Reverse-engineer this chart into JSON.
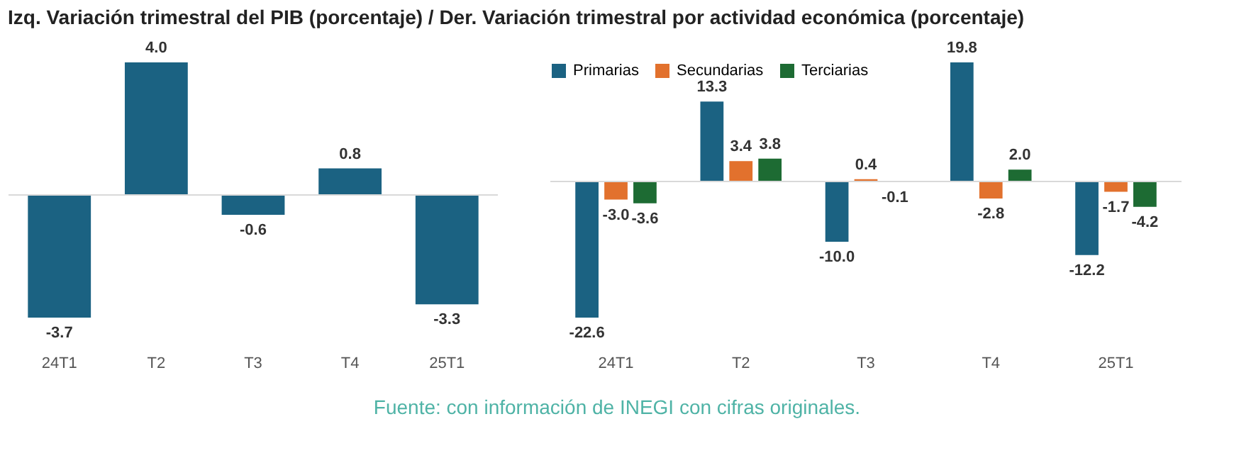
{
  "chart_data": [
    {
      "type": "bar",
      "title": "Izq. Variación trimestral del PIB (porcentaje) / Der. Variación trimestral por actividad económica (porcentaje)",
      "categories": [
        "24T1",
        "T2",
        "T3",
        "T4",
        "25T1"
      ],
      "values": [
        -3.7,
        4.0,
        -0.6,
        0.8,
        -3.3
      ],
      "value_labels": [
        "-3.7",
        "4.0",
        "-0.6",
        "0.8",
        "-3.3"
      ],
      "color": "#1b6282",
      "tick_labels": "x",
      "annotations": [
        "Fuente: con información de INEGI con cifras originales."
      ]
    },
    {
      "type": "bar",
      "categories": [
        "24T1",
        "T2",
        "T3",
        "T4",
        "25T1"
      ],
      "series": [
        {
          "name": "Primarias",
          "color": "#1b6282",
          "values": [
            -22.6,
            13.3,
            -10.0,
            19.8,
            -12.2
          ],
          "value_labels": [
            "-22.6",
            "13.3",
            "-10.0",
            "19.8",
            "-12.2"
          ]
        },
        {
          "name": "Secundarias",
          "color": "#e2712d",
          "values": [
            -3.0,
            3.4,
            0.4,
            -2.8,
            -1.7
          ],
          "value_labels": [
            "-3.0",
            "3.4",
            "0.4",
            "-2.8",
            "-1.7"
          ]
        },
        {
          "name": "Terciarias",
          "color": "#1d6b33",
          "values": [
            -3.6,
            3.8,
            -0.1,
            2.0,
            -4.2
          ],
          "value_labels": [
            "-3.6",
            "3.8",
            "-0.1",
            "2.0",
            "-4.2"
          ]
        }
      ],
      "tick_labels": "x",
      "legend": "top left"
    }
  ]
}
